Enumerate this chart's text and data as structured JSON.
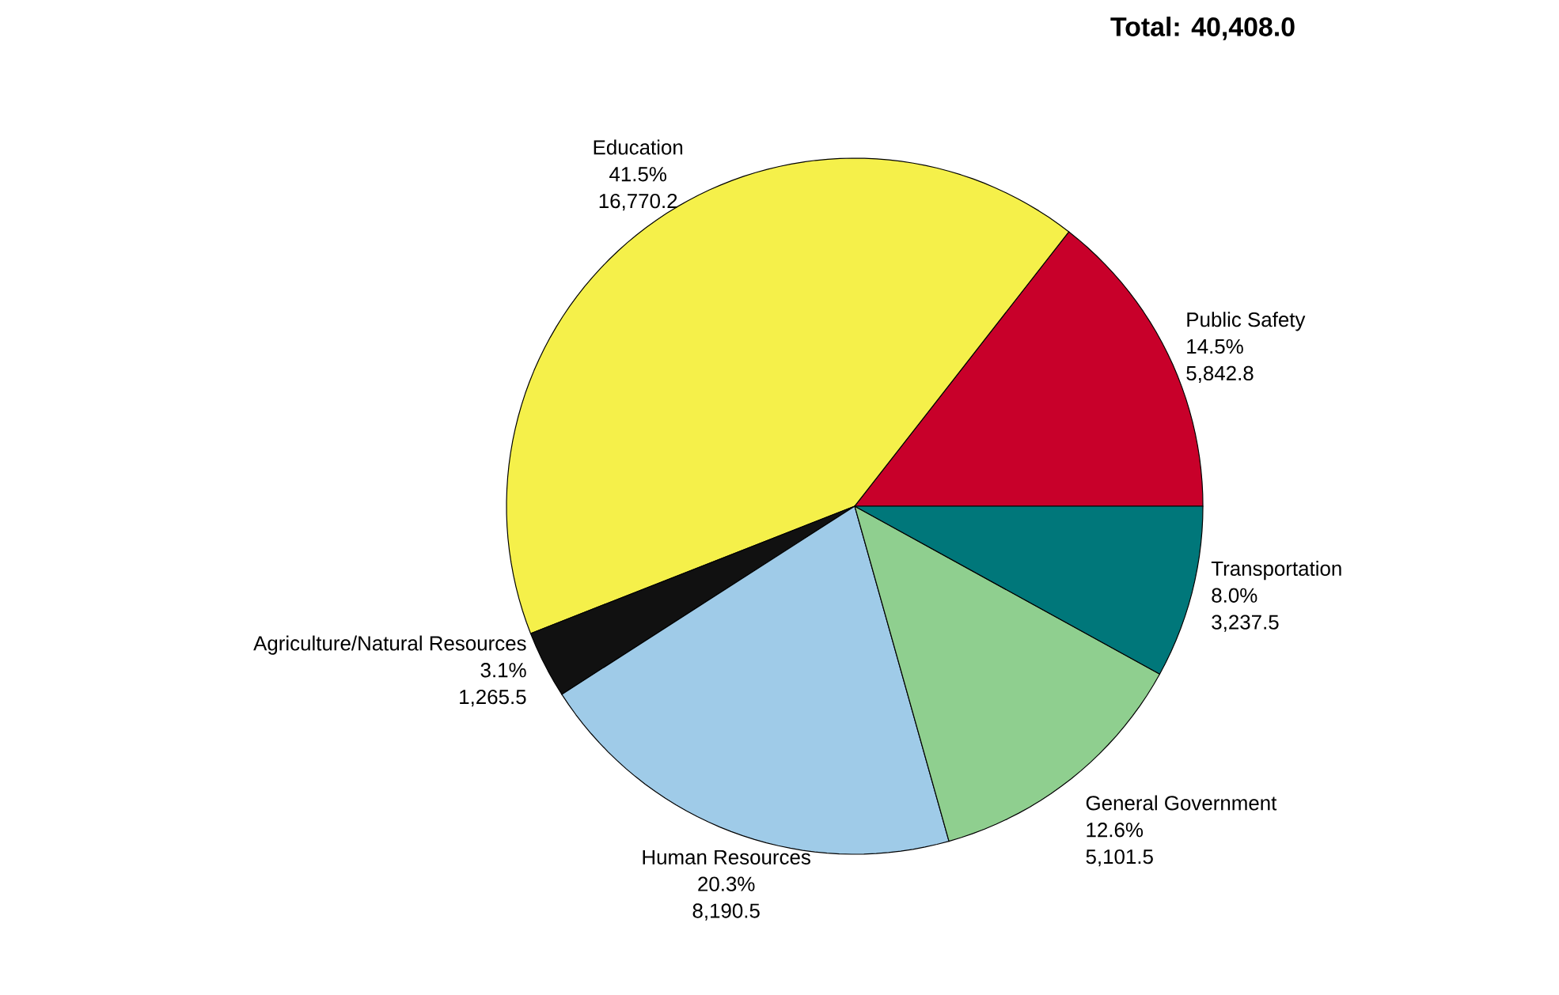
{
  "chart_data": {
    "type": "pie",
    "title": "Total: 40,408.0",
    "categories": [
      "Public Safety",
      "Education",
      "Agriculture/Natural Resources",
      "Human Resources",
      "General Government",
      "Transportation"
    ],
    "values": [
      5842.8,
      16770.2,
      1265.5,
      8190.5,
      5101.5,
      3237.5
    ],
    "colors": [
      "#c8002a",
      "#f5f04a",
      "#111111",
      "#9fcbe8",
      "#8fcf8f",
      "#00777a"
    ],
    "value_labels": [
      "5,842.8",
      "16,770.2",
      "1,265.5",
      "8,190.5",
      "5,101.5",
      "3,237.5"
    ],
    "annotations": [
      "14.5%",
      "41.5%",
      "3.1%",
      "20.3%",
      "12.6%",
      "8.0%"
    ]
  }
}
